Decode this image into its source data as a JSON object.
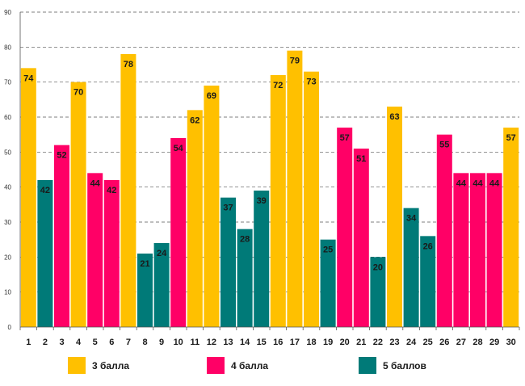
{
  "chart_data": {
    "type": "bar",
    "title": "",
    "xlabel": "",
    "ylabel": "",
    "ylim": [
      0,
      90
    ],
    "yticks": [
      0,
      10,
      20,
      30,
      40,
      50,
      60,
      70,
      80,
      90
    ],
    "grid": true,
    "legend_position": "bottom",
    "categories": [
      "1",
      "2",
      "3",
      "4",
      "5",
      "6",
      "7",
      "8",
      "9",
      "10",
      "11",
      "12",
      "13",
      "14",
      "15",
      "16",
      "17",
      "18",
      "19",
      "20",
      "21",
      "22",
      "23",
      "24",
      "25",
      "26",
      "27",
      "28",
      "29",
      "30"
    ],
    "values": [
      74,
      42,
      52,
      70,
      44,
      42,
      78,
      21,
      24,
      54,
      62,
      69,
      37,
      28,
      39,
      72,
      79,
      73,
      25,
      57,
      51,
      20,
      63,
      34,
      26,
      55,
      44,
      44,
      44,
      57
    ],
    "groups": [
      "3 балла",
      "5 баллов",
      "4 балла",
      "3 балла",
      "4 балла",
      "4 балла",
      "3 балла",
      "5 баллов",
      "5 баллов",
      "4 балла",
      "3 балла",
      "3 балла",
      "5 баллов",
      "5 баллов",
      "5 баллов",
      "3 балла",
      "3 балла",
      "3 балла",
      "5 баллов",
      "4 балла",
      "4 балла",
      "5 баллов",
      "3 балла",
      "5 баллов",
      "5 баллов",
      "4 балла",
      "4 балла",
      "4 балла",
      "4 балла",
      "3 балла"
    ],
    "legend": [
      {
        "name": "3 балла",
        "color": "#FFC000"
      },
      {
        "name": "4 балла",
        "color": "#FF0066"
      },
      {
        "name": "5 баллов",
        "color": "#007A78"
      }
    ]
  }
}
